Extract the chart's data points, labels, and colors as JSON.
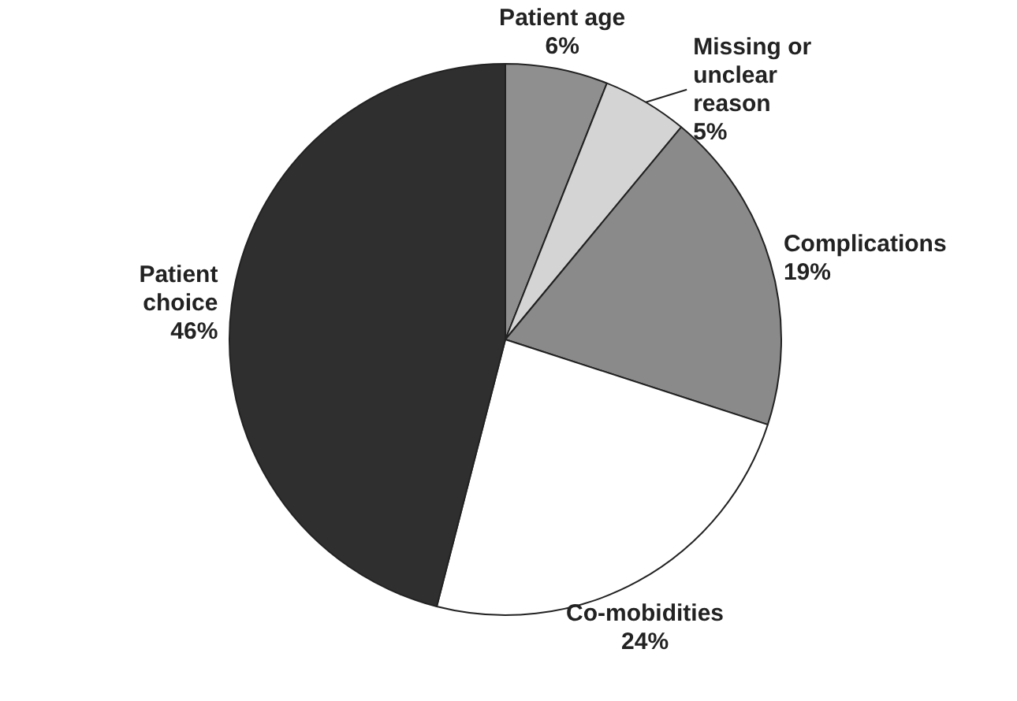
{
  "chart_data": {
    "type": "pie",
    "categories": [
      "Patient age",
      "Missing or unclear reason",
      "Complications",
      "Co-mobidities",
      "Patient choice"
    ],
    "values": [
      6,
      5,
      19,
      24,
      46
    ],
    "value_labels": [
      "6%",
      "5%",
      "19%",
      "24%",
      "46%"
    ],
    "colors": [
      "#8f8f8f",
      "#d4d4d4",
      "#8a8a8a",
      "#ffffff",
      "#2f2f2f"
    ]
  }
}
